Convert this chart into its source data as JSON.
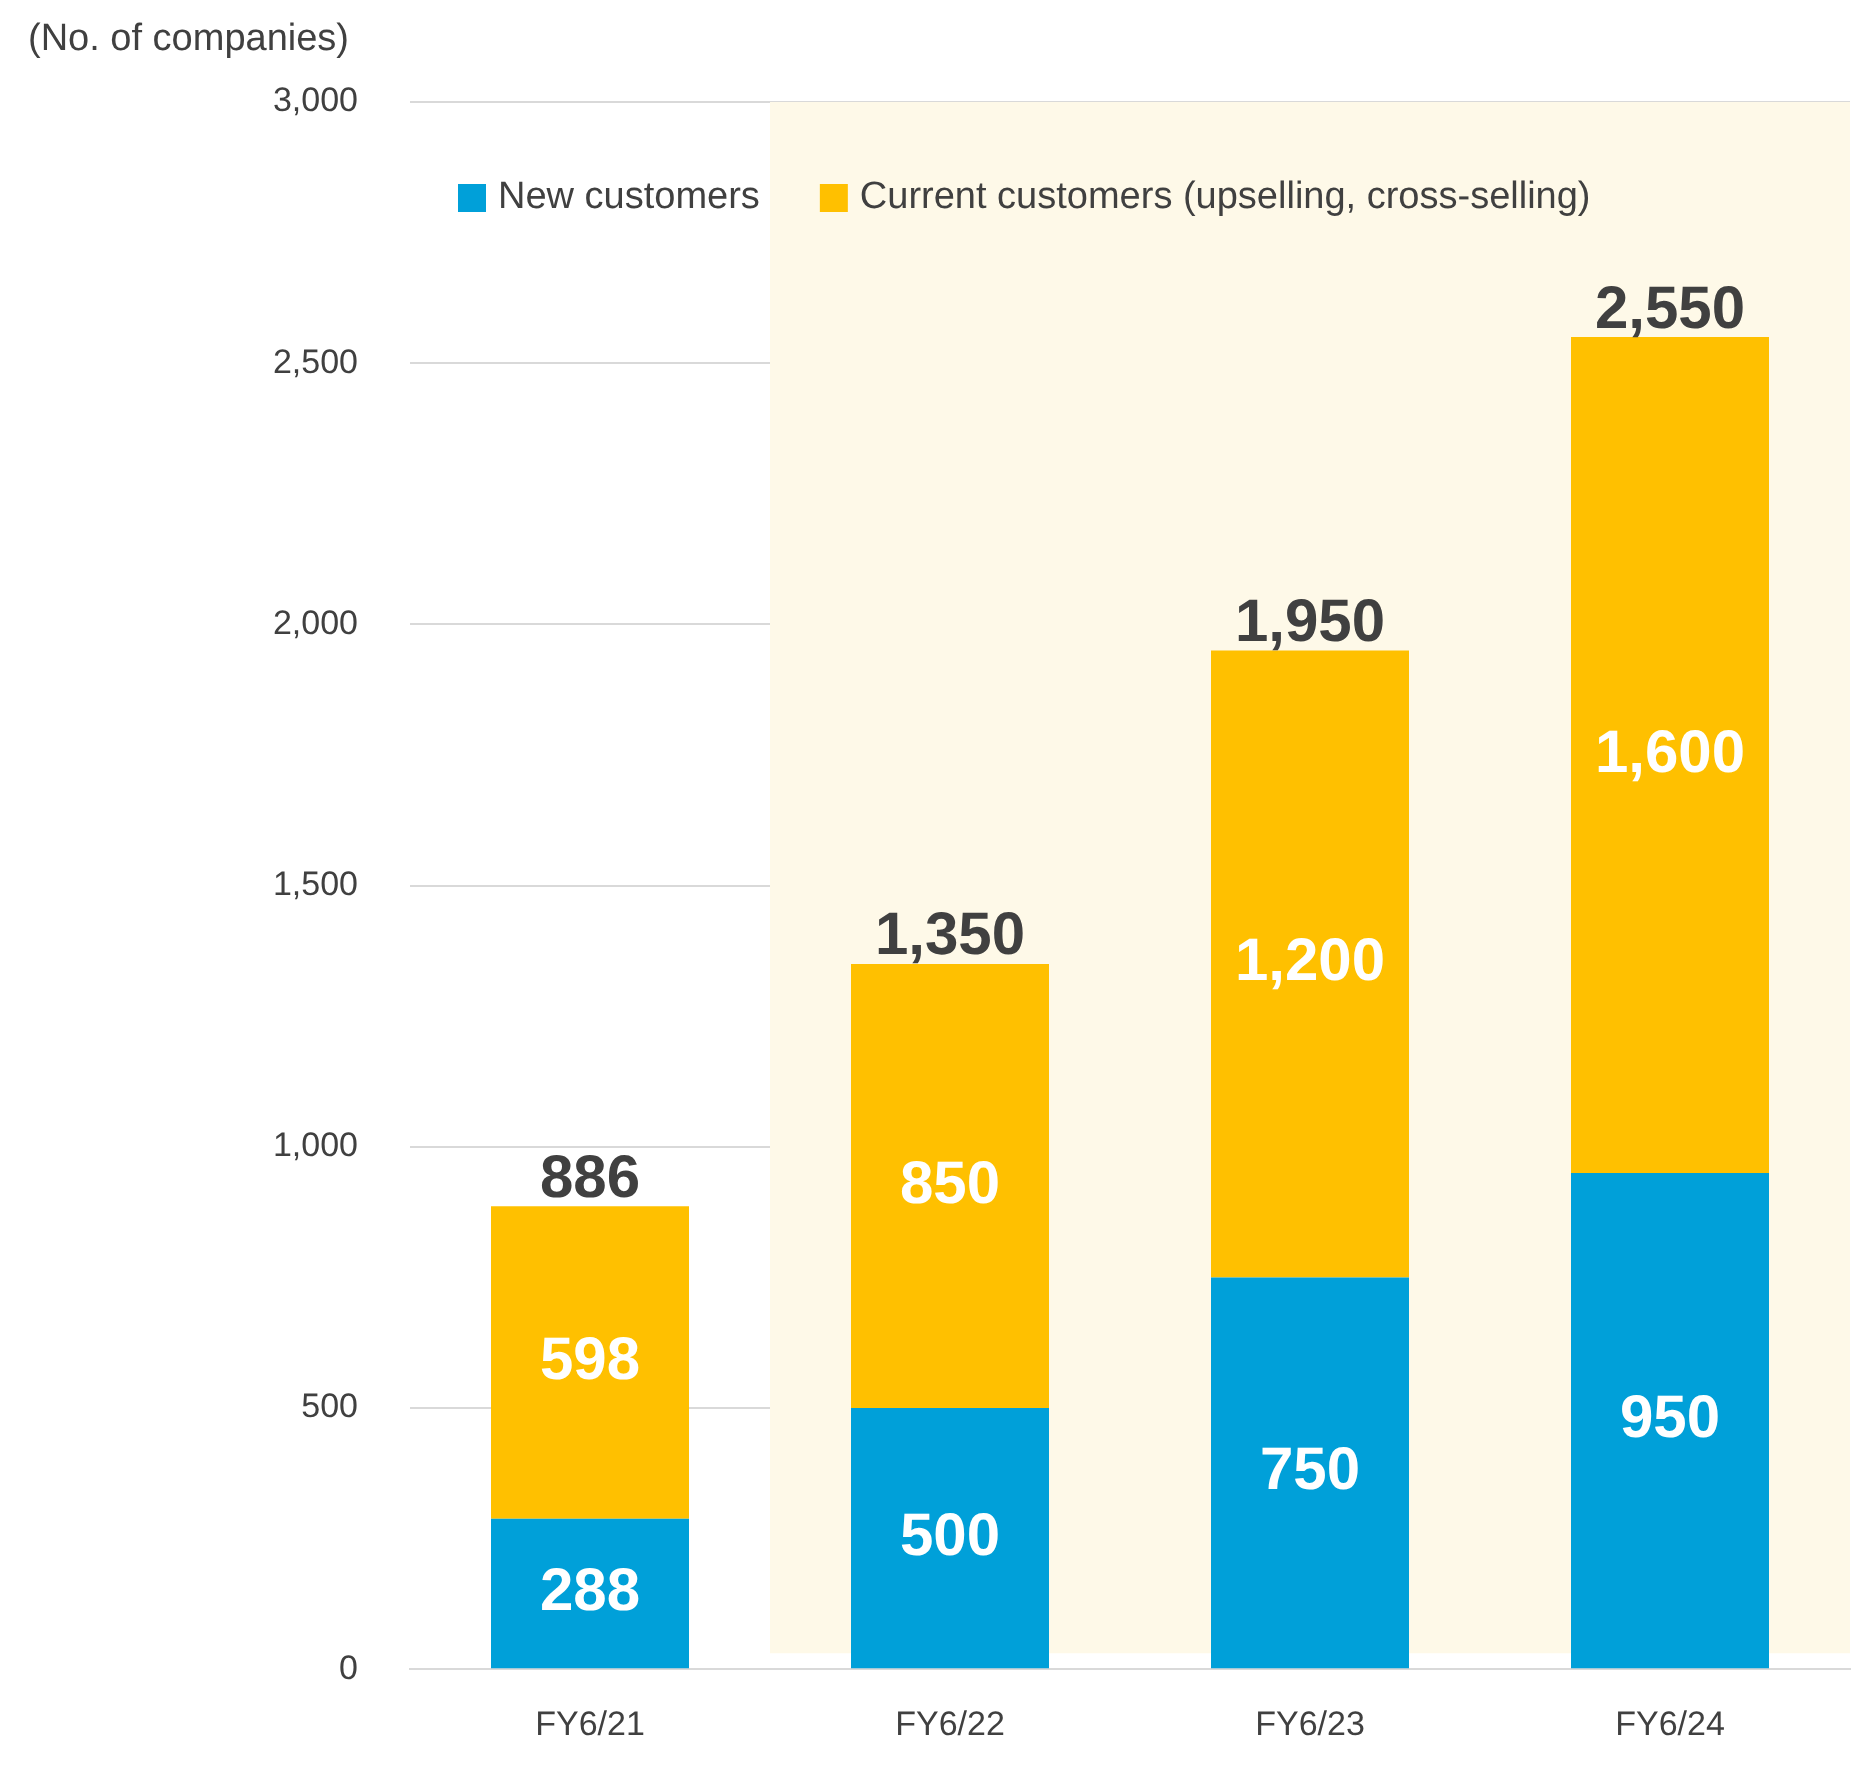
{
  "chart_data": {
    "type": "bar",
    "stacked": true,
    "ylabel": "(No. of companies)",
    "categories": [
      "FY6/21",
      "FY6/22",
      "FY6/23",
      "FY6/24"
    ],
    "series": [
      {
        "name": "New customers",
        "color": "#00a0d9",
        "values": [
          288,
          500,
          750,
          950
        ],
        "value_labels": [
          "288",
          "500",
          "750",
          "950"
        ]
      },
      {
        "name": "Current customers (upselling, cross-selling)",
        "color": "#ffc000",
        "values": [
          598,
          850,
          1200,
          1600
        ],
        "value_labels": [
          "598",
          "850",
          "1,200",
          "1,600"
        ]
      }
    ],
    "totals": [
      "886",
      "1,350",
      "1,950",
      "2,550"
    ],
    "ylim": [
      0,
      3000
    ],
    "yticks": [
      0,
      {
        "value": 500,
        "label": "500"
      },
      {
        "value": 1000,
        "label": "1,000"
      },
      {
        "value": 1500,
        "label": "1,500"
      },
      {
        "value": 2000,
        "label": "2,000"
      },
      {
        "value": 2500,
        "label": "2,500"
      },
      {
        "value": 3000,
        "label": "3,000"
      }
    ],
    "grid": "y",
    "legend": "top",
    "bands": [
      {
        "axis": "x",
        "from": "FY6/22",
        "to": "FY6/24",
        "color": "#fef9e8"
      }
    ]
  }
}
